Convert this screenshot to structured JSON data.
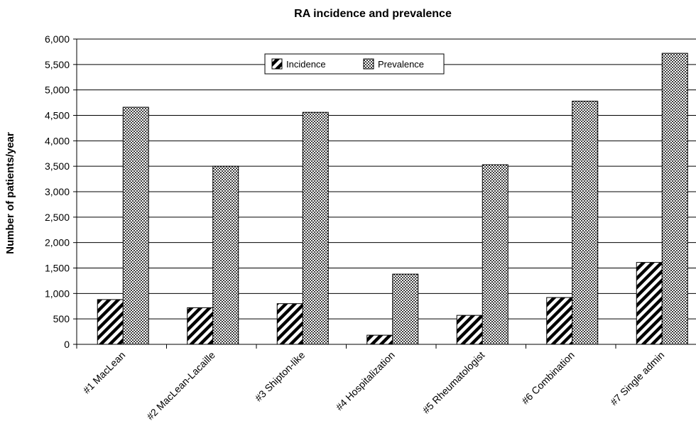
{
  "chart_data": {
    "type": "bar",
    "title": "RA incidence and prevalence",
    "xlabel": "",
    "ylabel": "Number of patients/year",
    "ylim": [
      0,
      6000
    ],
    "yticks": [
      "0",
      "500",
      "1,000",
      "1,500",
      "2,000",
      "2,500",
      "3,000",
      "3,500",
      "4,000",
      "4,500",
      "5,000",
      "5,500",
      "6,000"
    ],
    "grid": "horizontal",
    "legend_position": "top-center",
    "categories": [
      "#1 MacLean",
      "#2 MacLean-Lacaille",
      "#3 Shipton-like",
      "#4 Hospitalization",
      "#5 Rheumatologist",
      "#6 Combination",
      "#7 Single admin"
    ],
    "series": [
      {
        "name": "Incidence",
        "pattern": "diagonal-hatch",
        "values": [
          880,
          720,
          800,
          180,
          570,
          920,
          1610
        ]
      },
      {
        "name": "Prevalence",
        "pattern": "dotted",
        "values": [
          4660,
          3500,
          4560,
          1380,
          3530,
          4780,
          5720
        ]
      }
    ]
  }
}
